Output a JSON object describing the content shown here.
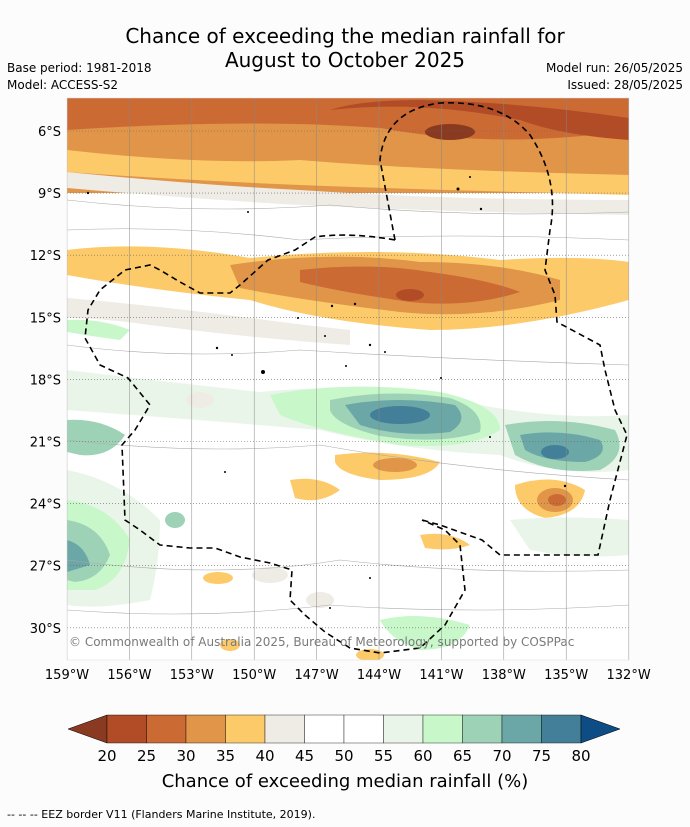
{
  "title_line1": "Chance of exceeding the median rainfall for",
  "title_line2": "August to October 2025",
  "base_period": "Base period: 1981-2018",
  "model": "Model: ACCESS-S2",
  "model_run": "Model run: 26/05/2025",
  "issued": "Issued: 28/05/2025",
  "copyright": "© Commonwealth of Australia 2025, Bureau of Meteorology, supported by COSPPac",
  "lat_labels": [
    "6°S",
    "9°S",
    "12°S",
    "15°S",
    "18°S",
    "21°S",
    "24°S",
    "27°S",
    "30°S"
  ],
  "lon_labels": [
    "159°W",
    "156°W",
    "153°W",
    "150°W",
    "147°W",
    "144°W",
    "141°W",
    "138°W",
    "135°W",
    "132°W"
  ],
  "colorbar": {
    "ticks": [
      "20",
      "25",
      "30",
      "35",
      "40",
      "45",
      "50",
      "55",
      "60",
      "65",
      "70",
      "75",
      "80"
    ],
    "colors": [
      "#8b3a22",
      "#b24c27",
      "#cc6a34",
      "#e09548",
      "#fdca6a",
      "#efebe5",
      "#ffffff",
      "#ffffff",
      "#e9f5e9",
      "#c8f7ca",
      "#9ed2b7",
      "#6ba7a6",
      "#437f98",
      "#0d4c84"
    ],
    "label": "Chance of exceeding median rainfall (%)"
  },
  "footer": "--  --  -- EEZ border V11 (Flanders Marine Institute, 2019)."
}
